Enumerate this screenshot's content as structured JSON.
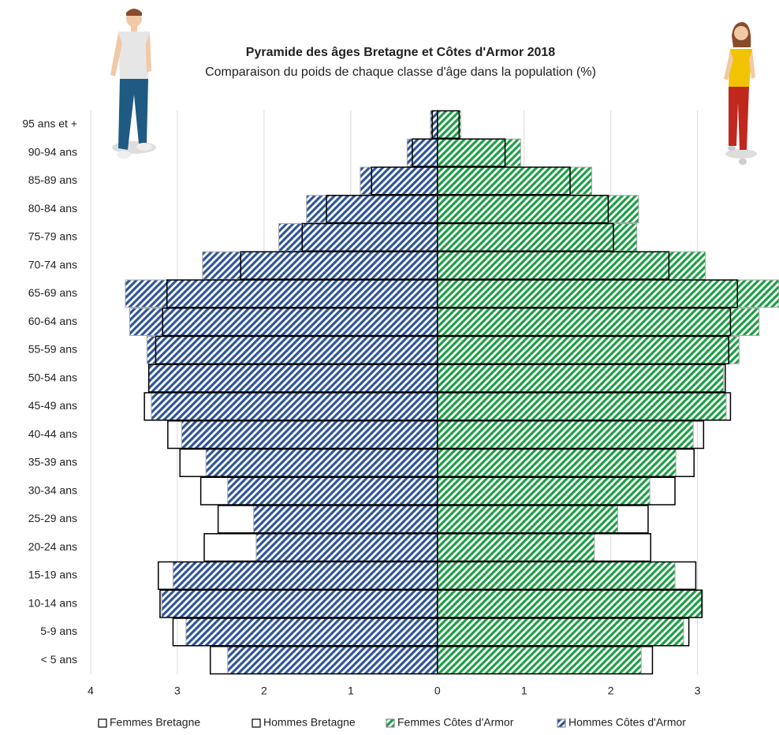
{
  "chart_data": {
    "type": "pyramid",
    "title": "Pyramide des âges Bretagne et Côtes d'Armor 2018",
    "subtitle": "Comparaison du poids de chaque classe d'âge dans la population (%)",
    "categories": [
      "95 ans et +",
      "90-94 ans",
      "85-89 ans",
      "80-84 ans",
      "75-79 ans",
      "70-74 ans",
      "65-69 ans",
      "60-64 ans",
      "55-59 ans",
      "50-54 ans",
      "45-49 ans",
      "40-44 ans",
      "35-39 ans",
      "30-34 ans",
      "25-29 ans",
      "20-24 ans",
      "15-19 ans",
      "10-14 ans",
      "5-9 ans",
      "< 5 ans"
    ],
    "xlim": [
      -4,
      3.94
    ],
    "xticks": [
      {
        "value": -4,
        "label": "4"
      },
      {
        "value": -3,
        "label": "3"
      },
      {
        "value": -2,
        "label": "2"
      },
      {
        "value": -1,
        "label": "1"
      },
      0,
      1,
      2,
      3
    ],
    "grid": true,
    "legend": "bottom",
    "series": [
      {
        "name": "Femmes Bretagne",
        "color": "#000000",
        "style": "outline",
        "values": [
          0.25,
          0.78,
          1.53,
          1.97,
          2.03,
          2.67,
          3.46,
          3.38,
          3.36,
          3.32,
          3.38,
          3.07,
          2.96,
          2.74,
          2.43,
          2.46,
          2.98,
          3.05,
          2.9,
          2.48
        ]
      },
      {
        "name": "Hommes Bretagne",
        "color": "#000000",
        "style": "outline",
        "values": [
          -0.06,
          -0.29,
          -0.76,
          -1.28,
          -1.56,
          -2.27,
          -3.12,
          -3.17,
          -3.25,
          -3.33,
          -3.38,
          -3.11,
          -2.97,
          -2.73,
          -2.53,
          -2.69,
          -3.22,
          -3.2,
          -3.05,
          -2.62
        ]
      },
      {
        "name": "Femmes Côtes d'Armor",
        "color": "#1e9e47",
        "style": "hatch",
        "values": [
          0.27,
          0.96,
          1.78,
          2.32,
          2.3,
          3.09,
          3.94,
          3.71,
          3.48,
          3.3,
          3.33,
          2.95,
          2.75,
          2.45,
          2.08,
          1.81,
          2.74,
          3.06,
          2.84,
          2.35
        ]
      },
      {
        "name": "Hommes Côtes d'Armor",
        "color": "#2f5597",
        "style": "hatch",
        "values": [
          -0.08,
          -0.35,
          -0.89,
          -1.51,
          -1.83,
          -2.71,
          -3.6,
          -3.55,
          -3.35,
          -3.33,
          -3.3,
          -2.95,
          -2.67,
          -2.42,
          -2.12,
          -2.09,
          -3.05,
          -3.18,
          -2.9,
          -2.42
        ]
      }
    ]
  }
}
